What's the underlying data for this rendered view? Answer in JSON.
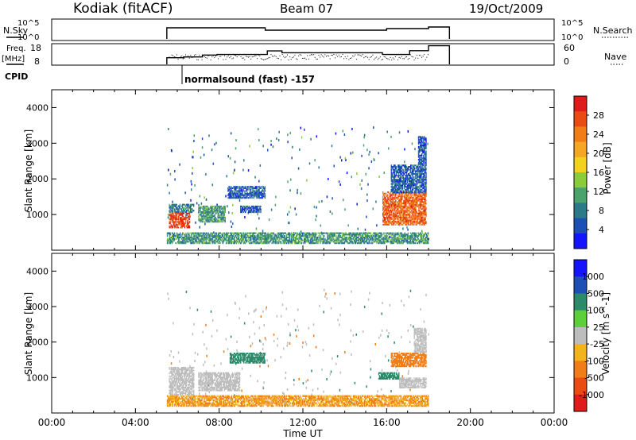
{
  "header": {
    "station": "Kodiak (fitACF)",
    "beam": "Beam 07",
    "date": "19/Oct/2009"
  },
  "nsky_panel": {
    "left_label": "N.Sky",
    "left_ticks": [
      "10^5",
      "10^0"
    ],
    "right_ticks": [
      "10^5",
      "10^0"
    ],
    "right_label": "N.Search"
  },
  "freq_panel": {
    "left_label_1": "Freq.",
    "left_label_2": "[MHz]",
    "left_ticks": [
      "18",
      "8"
    ],
    "right_ticks": [
      "60",
      "0"
    ],
    "right_label": "Nave"
  },
  "cpid": {
    "label": "CPID",
    "program": "normalsound (fast) -157"
  },
  "colors": {
    "power_scale": [
      "#1414ff",
      "#1e4fb4",
      "#2b7a8a",
      "#4aa36a",
      "#8ccc3a",
      "#f2d21c",
      "#f5a623",
      "#f07d18",
      "#ea4b12",
      "#e01b1b"
    ],
    "velocity_scale": [
      "#1414ff",
      "#1e4fb4",
      "#2b8a6a",
      "#5ccf3a",
      "#bdbdbd",
      "#f2b31c",
      "#f07d18",
      "#ea4b12",
      "#e01b1b"
    ]
  },
  "chart_data": [
    {
      "type": "heatmap",
      "title": "Power",
      "xlabel": "Time UT",
      "ylabel": "Slant Range [km]",
      "x_ticks": [
        "00:00",
        "04:00",
        "08:00",
        "12:00",
        "16:00",
        "20:00",
        "00:00"
      ],
      "xlim_hours": [
        0,
        24
      ],
      "ylim": [
        0,
        4500
      ],
      "y_ticks": [
        1000,
        2000,
        3000,
        4000
      ],
      "colorbar_label": "Power [dB]",
      "colorbar_ticks": [
        4,
        8,
        12,
        16,
        20,
        24,
        28
      ],
      "colorbar_range": [
        0,
        32
      ],
      "data_window_hours": [
        5.5,
        18.0
      ],
      "regions": [
        {
          "t": [
            5.5,
            18.0
          ],
          "r": [
            180,
            500
          ],
          "level": 10
        },
        {
          "t": [
            5.6,
            6.6
          ],
          "r": [
            620,
            1050
          ],
          "level": 28
        },
        {
          "t": [
            5.6,
            6.8
          ],
          "r": [
            1050,
            1300
          ],
          "level": 8
        },
        {
          "t": [
            7.0,
            8.3
          ],
          "r": [
            780,
            1250
          ],
          "level": 10
        },
        {
          "t": [
            8.4,
            10.2
          ],
          "r": [
            1450,
            1800
          ],
          "level": 6
        },
        {
          "t": [
            9.0,
            10.0
          ],
          "r": [
            1050,
            1250
          ],
          "level": 5
        },
        {
          "t": [
            15.8,
            17.9
          ],
          "r": [
            700,
            1650
          ],
          "level": 26
        },
        {
          "t": [
            16.2,
            17.9
          ],
          "r": [
            1600,
            2400
          ],
          "level": 6
        },
        {
          "t": [
            17.5,
            17.9
          ],
          "r": [
            2400,
            3200
          ],
          "level": 5
        }
      ]
    },
    {
      "type": "heatmap",
      "title": "Velocity",
      "xlabel": "Time UT",
      "ylabel": "Slant Range [km]",
      "x_ticks": [
        "00:00",
        "04:00",
        "08:00",
        "12:00",
        "16:00",
        "20:00",
        "00:00"
      ],
      "xlim_hours": [
        0,
        24
      ],
      "ylim": [
        0,
        4500
      ],
      "y_ticks": [
        1000,
        2000,
        3000,
        4000
      ],
      "colorbar_label": "Velocity [m s^-1]",
      "colorbar_ticks": [
        "1000",
        "500",
        "100",
        "25",
        "-25",
        "-100",
        "-500",
        "-1000"
      ],
      "data_window_hours": [
        5.5,
        18.0
      ],
      "regions": [
        {
          "t": [
            5.5,
            18.0
          ],
          "r": [
            180,
            500
          ],
          "level": -100
        },
        {
          "t": [
            5.6,
            6.8
          ],
          "r": [
            500,
            1300
          ],
          "level": 0
        },
        {
          "t": [
            7.0,
            9.0
          ],
          "r": [
            620,
            1150
          ],
          "level": 0
        },
        {
          "t": [
            8.5,
            10.2
          ],
          "r": [
            1400,
            1700
          ],
          "level": 150
        },
        {
          "t": [
            16.2,
            17.9
          ],
          "r": [
            1300,
            1700
          ],
          "level": -150
        },
        {
          "t": [
            15.6,
            16.6
          ],
          "r": [
            950,
            1150
          ],
          "level": 150
        },
        {
          "t": [
            16.6,
            17.9
          ],
          "r": [
            700,
            1000
          ],
          "level": 0
        },
        {
          "t": [
            17.3,
            17.9
          ],
          "r": [
            1700,
            2400
          ],
          "level": 0
        }
      ]
    }
  ]
}
